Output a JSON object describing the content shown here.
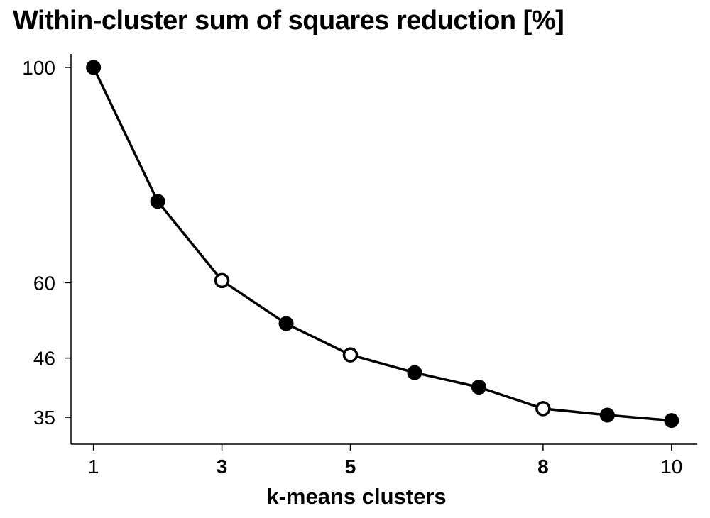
{
  "chart_data": {
    "type": "line",
    "title": "Within-cluster sum of squares reduction [%]",
    "xlabel": "k-means clusters",
    "ylabel": "",
    "x": [
      1,
      2,
      3,
      4,
      5,
      6,
      7,
      8,
      9,
      10
    ],
    "series": [
      {
        "values": [
          100,
          75.1,
          60.4,
          52.4,
          46.6,
          43.3,
          40.6,
          36.6,
          35.4,
          34.4
        ],
        "hollow_markers_at_x": [
          3,
          5,
          8
        ]
      }
    ],
    "xticks": [
      {
        "value": 1,
        "label": "1",
        "bold": false
      },
      {
        "value": 3,
        "label": "3",
        "bold": true
      },
      {
        "value": 5,
        "label": "5",
        "bold": true
      },
      {
        "value": 8,
        "label": "8",
        "bold": true
      },
      {
        "value": 10,
        "label": "10",
        "bold": false
      }
    ],
    "yticks": [
      {
        "value": 100,
        "label": "100"
      },
      {
        "value": 60,
        "label": "60"
      },
      {
        "value": 46,
        "label": "46"
      },
      {
        "value": 35,
        "label": "35"
      }
    ],
    "xlim": [
      0.65,
      10.4
    ],
    "ylim": [
      30,
      102.5
    ],
    "grid": false,
    "colors": {
      "line": "#000000",
      "marker_fill": "#000000",
      "hollow_fill": "#ffffff"
    }
  }
}
